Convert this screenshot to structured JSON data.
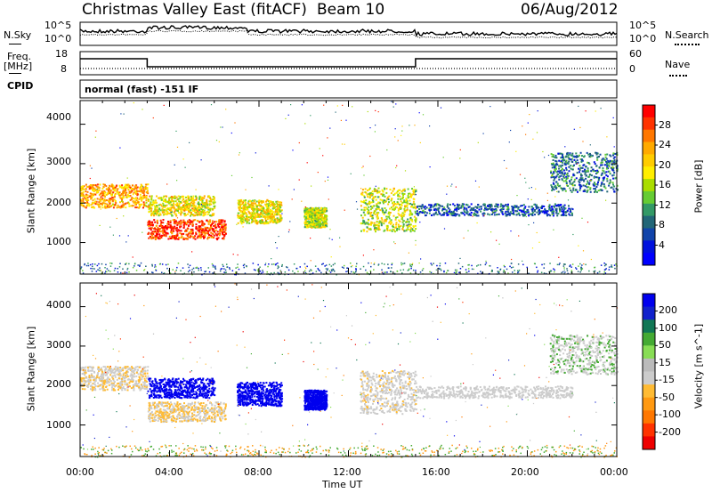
{
  "header": {
    "station": "Christmas Valley East (fitACF)",
    "beam": "Beam 10",
    "date": "06/Aug/2012"
  },
  "noise_panel": {
    "left_label": "N.Sky",
    "right_label": "N.Search",
    "left_ticks": [
      "10^5",
      "10^0"
    ],
    "right_ticks": [
      "10^5",
      "10^0"
    ]
  },
  "freq_panel": {
    "left_label_1": "Freq.",
    "left_label_2": "[MHz]",
    "right_label": "Nave",
    "left_ticks": [
      "18",
      "8"
    ],
    "right_ticks": [
      "60",
      "0"
    ]
  },
  "cpid_panel": {
    "label": "CPID",
    "value": "normal (fast) -151 IF"
  },
  "x_axis": {
    "label": "Time UT",
    "ticks": [
      "00:00",
      "04:00",
      "08:00",
      "12:00",
      "16:00",
      "20:00",
      "00:00"
    ]
  },
  "power_panel": {
    "ylabel": "Slant Range [km]",
    "yticks": [
      "4000",
      "3000",
      "2000",
      "1000"
    ],
    "colorbar_label": "Power [dB]",
    "colorbar_ticks": [
      "28",
      "24",
      "20",
      "16",
      "12",
      "8",
      "4"
    ],
    "colors": [
      "#ff0000",
      "#ff3300",
      "#ff7700",
      "#ffaa00",
      "#ffcc00",
      "#ffee00",
      "#aadd00",
      "#66cc33",
      "#339966",
      "#226677",
      "#1144aa",
      "#0011dd",
      "#0000ff"
    ]
  },
  "velocity_panel": {
    "ylabel": "Slant Range [km]",
    "yticks": [
      "4000",
      "3000",
      "2000",
      "1000"
    ],
    "colorbar_label": "Velocity [m s^-1]",
    "colorbar_ticks": [
      "200",
      "100",
      "50",
      "15",
      "-15",
      "-50",
      "-100",
      "-200"
    ],
    "colors": [
      "#0000ee",
      "#1122cc",
      "#117755",
      "#44aa33",
      "#88dd55",
      "#bbbbbb",
      "#cccccc",
      "#ffbb33",
      "#ff9911",
      "#ff7700",
      "#ff3300",
      "#ee0000"
    ]
  },
  "chart_data": {
    "type": "heatmap",
    "x_range_hours": [
      0,
      24
    ],
    "y_range_km": [
      200,
      4600
    ],
    "freq_mhz_segments": [
      {
        "start_h": 0,
        "end_h": 3,
        "value": 15
      },
      {
        "start_h": 3,
        "end_h": 15,
        "value": 10.5
      },
      {
        "start_h": 15,
        "end_h": 24,
        "value": 15
      }
    ],
    "echo_bands": [
      {
        "t0": 0,
        "t1": 3,
        "r0": 1900,
        "r1": 2500,
        "power_db": 22,
        "velocity": -10
      },
      {
        "t0": 3,
        "t1": 6.5,
        "r0": 1100,
        "r1": 1600,
        "power_db": 28,
        "velocity": -15
      },
      {
        "t0": 3,
        "t1": 6,
        "r0": 1700,
        "r1": 2200,
        "power_db": 18,
        "velocity": 200
      },
      {
        "t0": 7,
        "t1": 9,
        "r0": 1500,
        "r1": 2100,
        "power_db": 18,
        "velocity": 200
      },
      {
        "t0": 10,
        "t1": 11,
        "r0": 1400,
        "r1": 1900,
        "power_db": 16,
        "velocity": 200
      },
      {
        "t0": 12.5,
        "t1": 15,
        "r0": 1300,
        "r1": 2400,
        "power_db": 16,
        "velocity": -5
      },
      {
        "t0": 15,
        "t1": 22,
        "r0": 1700,
        "r1": 2000,
        "power_db": 6,
        "velocity": 0
      },
      {
        "t0": 21,
        "t1": 24,
        "r0": 2300,
        "r1": 3300,
        "power_db": 8,
        "velocity": 10
      }
    ]
  }
}
